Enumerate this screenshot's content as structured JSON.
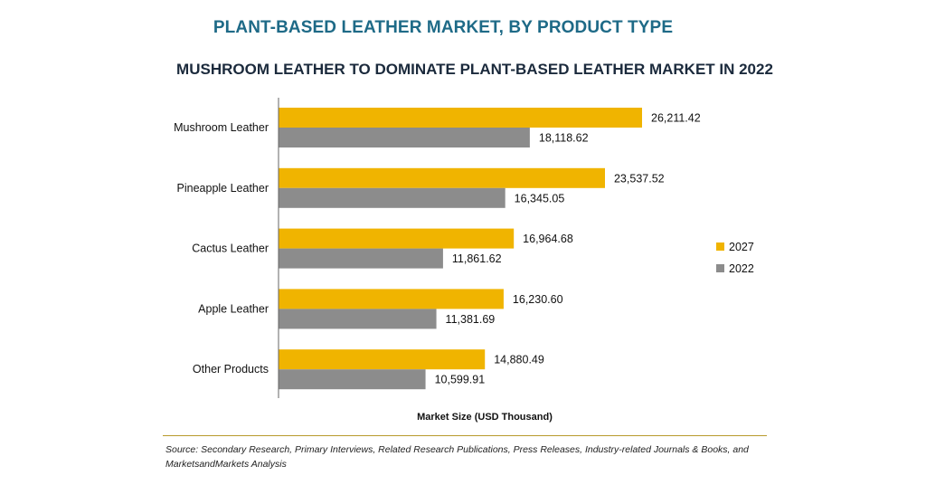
{
  "header": {
    "title": "PLANT-BASED LEATHER MARKET, BY PRODUCT TYPE",
    "subtitle": "MUSHROOM LEATHER TO DOMINATE PLANT-BASED LEATHER MARKET IN 2022"
  },
  "chart_data": {
    "type": "bar",
    "orientation": "horizontal",
    "categories": [
      "Mushroom Leather",
      "Pineapple Leather",
      "Cactus Leather",
      "Apple Leather",
      "Other Products"
    ],
    "series": [
      {
        "name": "2027",
        "color": "#f0b400",
        "values": [
          26211.42,
          23537.52,
          16964.68,
          16230.6,
          14880.49
        ],
        "labels": [
          "26,211.42",
          "23,537.52",
          "16,964.68",
          "16,230.60",
          "14,880.49"
        ]
      },
      {
        "name": "2022",
        "color": "#8c8c8c",
        "values": [
          18118.62,
          16345.05,
          11861.62,
          11381.69,
          10599.91
        ],
        "labels": [
          "18,118.62",
          "16,345.05",
          "11,861.62",
          "11,381.69",
          "10,599.91"
        ]
      }
    ],
    "xlabel": "Market Size (USD Thousand)",
    "ylabel": "",
    "xlim": [
      0,
      26211.42
    ],
    "legend_position": "right",
    "grid": false
  },
  "footer": {
    "source": "Source: Secondary Research, Primary Interviews, Related Research Publications, Press Releases, Industry-related Journals & Books, and MarketsandMarkets Analysis"
  }
}
